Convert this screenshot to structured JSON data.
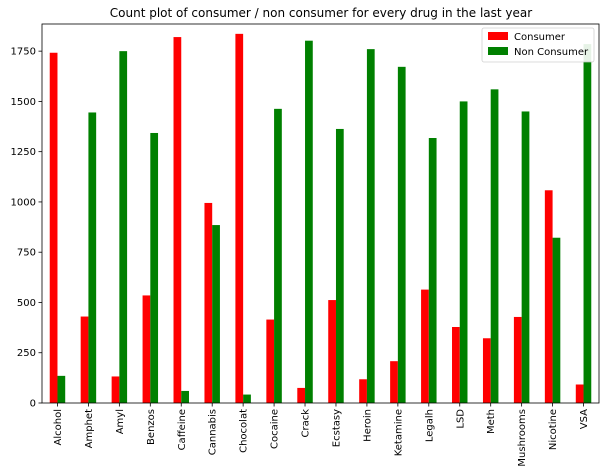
{
  "chart_data": {
    "type": "bar",
    "title": "Count plot of consumer / non consumer for every drug in the last year",
    "xlabel": "",
    "ylabel": "",
    "ylim": [
      0,
      1885
    ],
    "yticks": [
      0,
      250,
      500,
      750,
      1000,
      1250,
      1500,
      1750
    ],
    "legend_position": "top-right",
    "grid": false,
    "categories": [
      "Alcohol",
      "Amphet",
      "Amyl",
      "Benzos",
      "Caffeine",
      "Cannabis",
      "Chocolat",
      "Cocaine",
      "Crack",
      "Ecstasy",
      "Heroin",
      "Ketamine",
      "Legalh",
      "LSD",
      "Meth",
      "Mushrooms",
      "Nicotine",
      "VSA"
    ],
    "series": [
      {
        "name": "Consumer",
        "color": "#ff0000",
        "values": [
          1742,
          430,
          132,
          535,
          1820,
          995,
          1836,
          415,
          75,
          512,
          118,
          208,
          564,
          378,
          322,
          428,
          1058,
          92
        ]
      },
      {
        "name": "Non Consumer",
        "color": "#008000",
        "values": [
          135,
          1445,
          1750,
          1343,
          60,
          885,
          42,
          1463,
          1802,
          1363,
          1760,
          1672,
          1318,
          1500,
          1560,
          1450,
          822,
          1785
        ]
      }
    ]
  }
}
